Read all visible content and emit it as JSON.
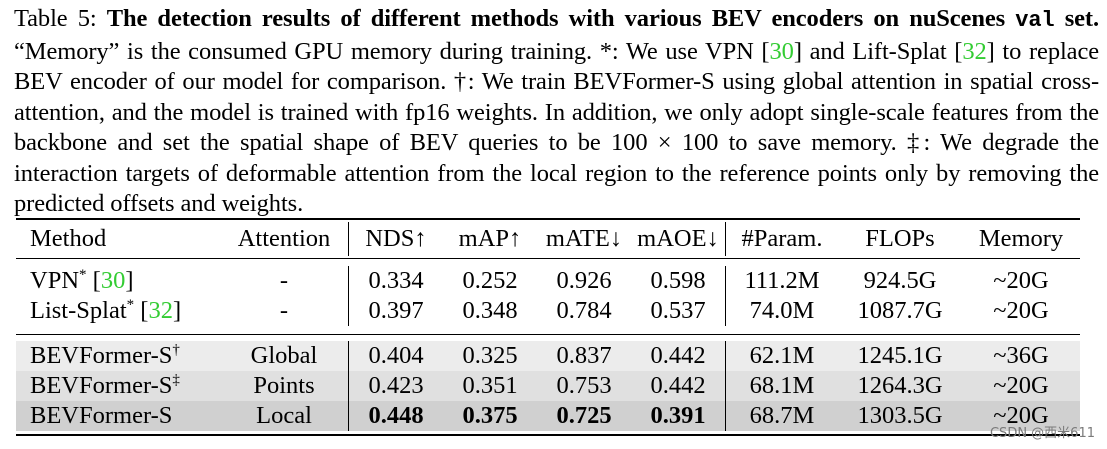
{
  "caption": {
    "label": "Table 5:",
    "bold_title": "The detection results of different methods with various BEV encoders on nuScenes",
    "bold_val": "val",
    "bold_set": "set.",
    "text_1": "“Memory” is the consumed GPU memory during training. *: We use VPN [",
    "cite_1": "30",
    "text_2": "] and Lift-Splat [",
    "cite_2": "32",
    "text_3": "] to replace BEV encoder of our model for comparison. †: We train BEVFormer-S using global attention in spatial cross-attention, and the model is trained with fp16 weights. In addition, we only adopt single-scale features from the backbone and set the spatial shape of BEV queries to be 100 × 100 to save memory. ‡: We degrade the interaction targets of deformable attention from the local region to the reference points only by removing the predicted offsets and weights."
  },
  "table": {
    "headers": [
      "Method",
      "Attention",
      "NDS↑",
      "mAP↑",
      "mATE↓",
      "mAOE↓",
      "#Param.",
      "FLOPs",
      "Memory"
    ],
    "rows": [
      {
        "method": "VPN",
        "mark": "*",
        "cite": "30",
        "attention": "-",
        "nds": "0.334",
        "map": "0.252",
        "mate": "0.926",
        "maoe": "0.598",
        "param": "111.2M",
        "flops": "924.5G",
        "memory": "~20G"
      },
      {
        "method": "List-Splat",
        "mark": "*",
        "cite": "32",
        "attention": "-",
        "nds": "0.397",
        "map": "0.348",
        "mate": "0.784",
        "maoe": "0.537",
        "param": "74.0M",
        "flops": "1087.7G",
        "memory": "~20G"
      },
      {
        "method": "BEVFormer-S",
        "mark": "†",
        "attention": "Global",
        "nds": "0.404",
        "map": "0.325",
        "mate": "0.837",
        "maoe": "0.442",
        "param": "62.1M",
        "flops": "1245.1G",
        "memory": "~36G"
      },
      {
        "method": "BEVFormer-S",
        "mark": "‡",
        "attention": "Points",
        "nds": "0.423",
        "map": "0.351",
        "mate": "0.753",
        "maoe": "0.442",
        "param": "68.1M",
        "flops": "1264.3G",
        "memory": "~20G"
      },
      {
        "method": "BEVFormer-S",
        "mark": "",
        "attention": "Local",
        "nds": "0.448",
        "map": "0.375",
        "mate": "0.725",
        "maoe": "0.391",
        "param": "68.7M",
        "flops": "1303.5G",
        "memory": "~20G"
      }
    ]
  },
  "watermark": "CSDN @西米611"
}
